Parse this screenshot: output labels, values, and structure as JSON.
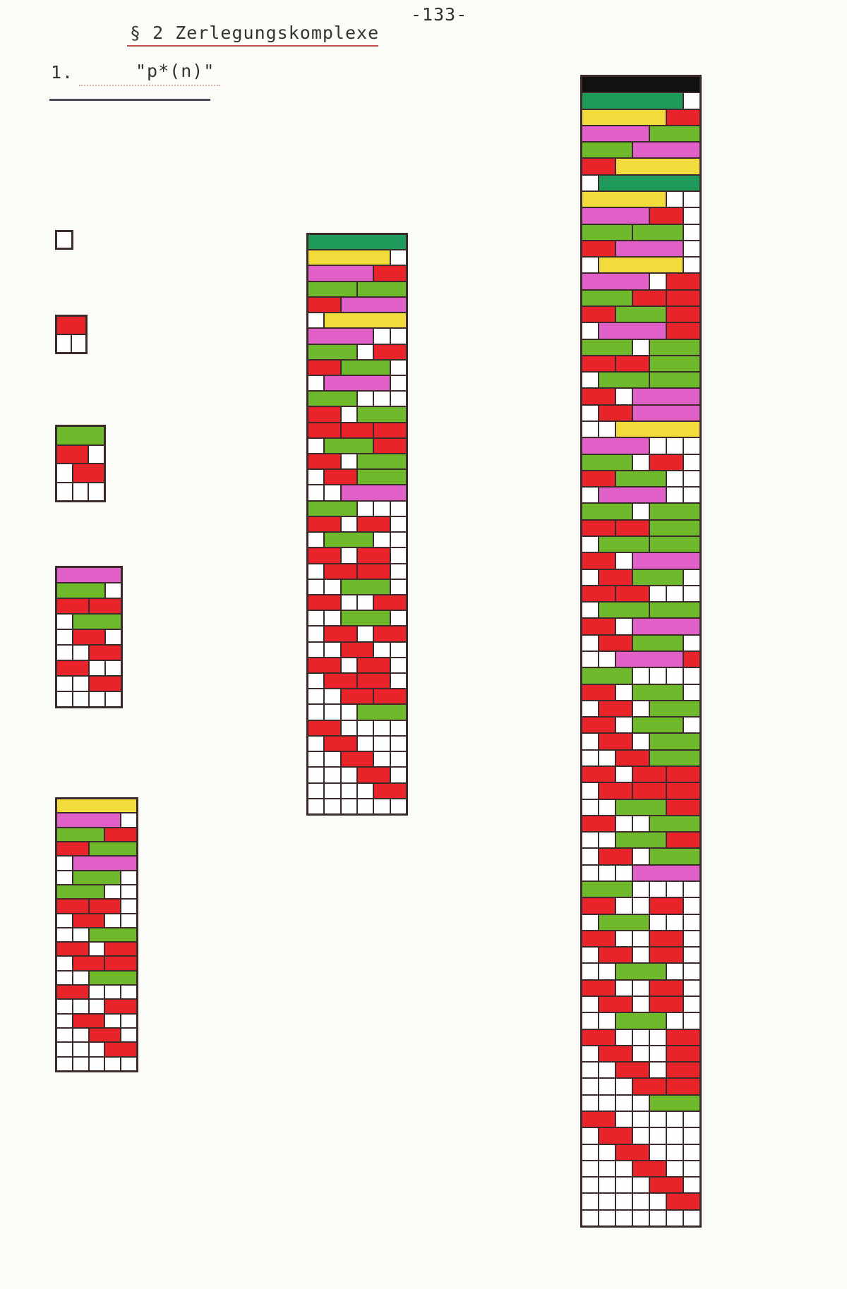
{
  "page": {
    "number": "-133-",
    "section_heading": "§ 2 Zerlegungskomplexe",
    "item_number": "1.",
    "item_title": "\"p*(n)\""
  },
  "colors": {
    "ink": "#3d2b2b",
    "paper": "#fefefe",
    "red": "#e8232a",
    "green": "#6fba2c",
    "pink": "#e060c8",
    "yellow": "#f1dc3c",
    "dark_green": "#209a5a",
    "black": "#111111"
  },
  "block_length_colors": {
    "1": "red",
    "2": "red",
    "3": "green",
    "4": "pink",
    "5": "yellow",
    "6": "dark_green",
    "7": "black"
  },
  "complexes": [
    {
      "name": "complex-n1",
      "n": 1,
      "rows": [
        []
      ]
    },
    {
      "name": "complex-n2",
      "n": 2,
      "rows": [
        [
          [
            0,
            2
          ]
        ],
        []
      ]
    },
    {
      "name": "complex-n3",
      "n": 3,
      "rows": [
        [
          [
            0,
            3
          ]
        ],
        [
          [
            0,
            2
          ]
        ],
        [
          [
            1,
            2
          ]
        ],
        []
      ]
    },
    {
      "name": "complex-n4",
      "n": 4,
      "rows": [
        [
          [
            0,
            4
          ]
        ],
        [
          [
            0,
            3
          ]
        ],
        [
          [
            0,
            2
          ],
          [
            2,
            2
          ]
        ],
        [
          [
            1,
            3
          ]
        ],
        [
          [
            1,
            2
          ]
        ],
        [
          [
            2,
            2
          ]
        ],
        [
          [
            0,
            2
          ]
        ],
        [
          [
            2,
            2
          ]
        ],
        []
      ]
    },
    {
      "name": "complex-n5",
      "n": 5,
      "rows": [
        [
          [
            0,
            5
          ]
        ],
        [
          [
            0,
            4
          ]
        ],
        [
          [
            0,
            3
          ],
          [
            3,
            2
          ]
        ],
        [
          [
            0,
            2
          ],
          [
            2,
            3
          ]
        ],
        [
          [
            1,
            4
          ]
        ],
        [
          [
            1,
            3
          ]
        ],
        [
          [
            0,
            3
          ]
        ],
        [
          [
            0,
            2
          ],
          [
            2,
            2
          ]
        ],
        [
          [
            1,
            2
          ]
        ],
        [
          [
            2,
            3
          ]
        ],
        [
          [
            0,
            2
          ],
          [
            3,
            2
          ]
        ],
        [
          [
            1,
            2
          ],
          [
            3,
            2
          ]
        ],
        [
          [
            2,
            3
          ]
        ],
        [
          [
            0,
            2
          ]
        ],
        [
          [
            3,
            2
          ]
        ],
        [
          [
            1,
            2
          ]
        ],
        [
          [
            2,
            2
          ]
        ],
        [
          [
            3,
            2
          ]
        ],
        []
      ]
    },
    {
      "name": "complex-n6",
      "n": 6,
      "rows": [
        [
          [
            0,
            6
          ]
        ],
        [
          [
            0,
            5
          ]
        ],
        [
          [
            0,
            4
          ],
          [
            4,
            2
          ]
        ],
        [
          [
            0,
            3
          ],
          [
            3,
            3
          ]
        ],
        [
          [
            0,
            2
          ],
          [
            2,
            4
          ]
        ],
        [
          [
            1,
            5
          ]
        ],
        [
          [
            0,
            4
          ]
        ],
        [
          [
            0,
            3
          ],
          [
            4,
            2
          ]
        ],
        [
          [
            0,
            2
          ],
          [
            2,
            3
          ]
        ],
        [
          [
            1,
            4
          ]
        ],
        [
          [
            0,
            3
          ]
        ],
        [
          [
            0,
            2
          ],
          [
            3,
            3
          ]
        ],
        [
          [
            0,
            2
          ],
          [
            2,
            2
          ],
          [
            4,
            2
          ]
        ],
        [
          [
            1,
            3
          ],
          [
            4,
            2
          ]
        ],
        [
          [
            0,
            2
          ],
          [
            3,
            3
          ]
        ],
        [
          [
            1,
            2
          ],
          [
            3,
            3
          ]
        ],
        [
          [
            2,
            4
          ]
        ],
        [
          [
            0,
            3
          ]
        ],
        [
          [
            0,
            2
          ],
          [
            3,
            2
          ]
        ],
        [
          [
            1,
            3
          ]
        ],
        [
          [
            0,
            2
          ],
          [
            3,
            2
          ]
        ],
        [
          [
            1,
            2
          ],
          [
            3,
            2
          ]
        ],
        [
          [
            2,
            3
          ]
        ],
        [
          [
            0,
            2
          ],
          [
            4,
            2
          ]
        ],
        [
          [
            2,
            3
          ]
        ],
        [
          [
            1,
            2
          ],
          [
            4,
            2
          ]
        ],
        [
          [
            2,
            2
          ]
        ],
        [
          [
            0,
            2
          ],
          [
            3,
            2
          ]
        ],
        [
          [
            1,
            2
          ],
          [
            3,
            2
          ]
        ],
        [
          [
            2,
            2
          ],
          [
            4,
            2
          ]
        ],
        [
          [
            3,
            3
          ]
        ],
        [
          [
            0,
            2
          ]
        ],
        [
          [
            1,
            2
          ]
        ],
        [
          [
            2,
            2
          ]
        ],
        [
          [
            3,
            2
          ]
        ],
        [
          [
            4,
            2
          ]
        ],
        []
      ]
    },
    {
      "name": "complex-n7",
      "n": 7,
      "rows": [
        [
          [
            0,
            7
          ]
        ],
        [
          [
            0,
            6
          ]
        ],
        [
          [
            0,
            5
          ],
          [
            5,
            2
          ]
        ],
        [
          [
            0,
            4
          ],
          [
            4,
            3
          ]
        ],
        [
          [
            0,
            3
          ],
          [
            3,
            4
          ]
        ],
        [
          [
            0,
            2
          ],
          [
            2,
            5
          ]
        ],
        [
          [
            1,
            6
          ]
        ],
        [
          [
            0,
            5
          ]
        ],
        [
          [
            0,
            4
          ],
          [
            4,
            2
          ]
        ],
        [
          [
            0,
            3
          ],
          [
            3,
            3
          ]
        ],
        [
          [
            0,
            2
          ],
          [
            2,
            4
          ]
        ],
        [
          [
            1,
            5
          ]
        ],
        [
          [
            0,
            4
          ],
          [
            5,
            2
          ]
        ],
        [
          [
            0,
            3
          ],
          [
            3,
            2
          ],
          [
            5,
            2
          ]
        ],
        [
          [
            0,
            2
          ],
          [
            2,
            3
          ],
          [
            5,
            2
          ]
        ],
        [
          [
            1,
            4
          ],
          [
            5,
            2
          ]
        ],
        [
          [
            0,
            3
          ],
          [
            4,
            3
          ]
        ],
        [
          [
            0,
            2
          ],
          [
            2,
            2
          ],
          [
            4,
            3
          ]
        ],
        [
          [
            1,
            3
          ],
          [
            4,
            3
          ]
        ],
        [
          [
            0,
            2
          ],
          [
            3,
            4
          ]
        ],
        [
          [
            1,
            2
          ],
          [
            3,
            4
          ]
        ],
        [
          [
            2,
            5
          ]
        ],
        [
          [
            0,
            4
          ]
        ],
        [
          [
            0,
            3
          ],
          [
            4,
            2
          ]
        ],
        [
          [
            0,
            2
          ],
          [
            2,
            3
          ]
        ],
        [
          [
            1,
            4
          ]
        ],
        [
          [
            0,
            3
          ],
          [
            4,
            3
          ]
        ],
        [
          [
            0,
            2
          ],
          [
            2,
            2
          ],
          [
            4,
            3
          ]
        ],
        [
          [
            1,
            3
          ],
          [
            4,
            3
          ]
        ],
        [
          [
            0,
            2
          ],
          [
            3,
            4
          ]
        ],
        [
          [
            1,
            2
          ],
          [
            3,
            3
          ]
        ],
        [
          [
            0,
            2
          ],
          [
            2,
            2
          ]
        ],
        [
          [
            1,
            3
          ],
          [
            4,
            3
          ]
        ],
        [
          [
            0,
            2
          ],
          [
            3,
            4
          ]
        ],
        [
          [
            1,
            2
          ],
          [
            3,
            3
          ]
        ],
        [
          [
            2,
            4
          ],
          [
            6,
            1
          ]
        ],
        [
          [
            0,
            3
          ]
        ],
        [
          [
            0,
            2
          ],
          [
            3,
            3
          ]
        ],
        [
          [
            1,
            2
          ],
          [
            4,
            3
          ]
        ],
        [
          [
            0,
            2
          ],
          [
            3,
            3
          ]
        ],
        [
          [
            1,
            2
          ],
          [
            4,
            3
          ]
        ],
        [
          [
            2,
            2
          ],
          [
            4,
            3
          ]
        ],
        [
          [
            0,
            2
          ],
          [
            3,
            2
          ],
          [
            5,
            2
          ]
        ],
        [
          [
            1,
            2
          ],
          [
            3,
            2
          ],
          [
            5,
            2
          ]
        ],
        [
          [
            2,
            3
          ],
          [
            5,
            2
          ]
        ],
        [
          [
            0,
            2
          ],
          [
            4,
            3
          ]
        ],
        [
          [
            2,
            3
          ],
          [
            5,
            2
          ]
        ],
        [
          [
            1,
            2
          ],
          [
            4,
            3
          ]
        ],
        [
          [
            3,
            4
          ]
        ],
        [
          [
            0,
            3
          ]
        ],
        [
          [
            0,
            2
          ],
          [
            4,
            2
          ]
        ],
        [
          [
            1,
            3
          ]
        ],
        [
          [
            0,
            2
          ],
          [
            4,
            2
          ]
        ],
        [
          [
            1,
            2
          ],
          [
            4,
            2
          ]
        ],
        [
          [
            2,
            3
          ]
        ],
        [
          [
            0,
            2
          ],
          [
            4,
            2
          ]
        ],
        [
          [
            1,
            2
          ],
          [
            4,
            2
          ]
        ],
        [
          [
            2,
            3
          ]
        ],
        [
          [
            0,
            2
          ],
          [
            5,
            2
          ]
        ],
        [
          [
            1,
            2
          ],
          [
            5,
            2
          ]
        ],
        [
          [
            2,
            2
          ],
          [
            5,
            2
          ]
        ],
        [
          [
            3,
            2
          ],
          [
            5,
            2
          ]
        ],
        [
          [
            4,
            3
          ]
        ],
        [
          [
            0,
            2
          ]
        ],
        [
          [
            1,
            2
          ]
        ],
        [
          [
            2,
            2
          ]
        ],
        [
          [
            3,
            2
          ]
        ],
        [
          [
            4,
            2
          ]
        ],
        [
          [
            5,
            2
          ]
        ],
        []
      ]
    }
  ]
}
